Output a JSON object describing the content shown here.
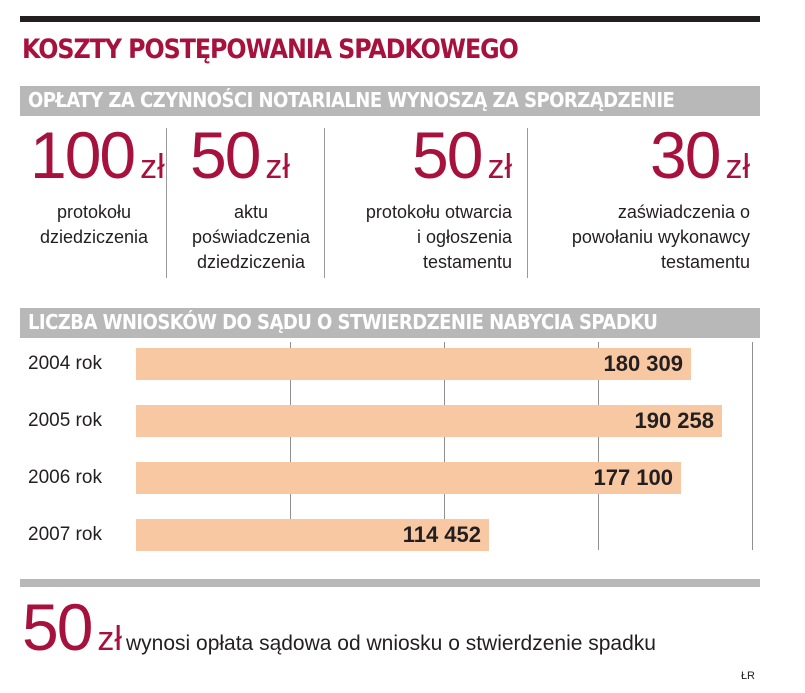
{
  "title": "KOSZTY POSTĘPOWANIA SPADKOWEGO",
  "notary_fees": {
    "heading": "OPŁATY ZA CZYNNOŚCI NOTARIALNE WYNOSZĄ ZA SPORZĄDZENIE",
    "items": [
      {
        "value": "100",
        "currency": "zł",
        "line1": "protokołu",
        "line2": "dziedziczenia",
        "line3": ""
      },
      {
        "value": "50",
        "currency": "zł",
        "line1": "aktu",
        "line2": "poświadczenia",
        "line3": "dziedziczenia"
      },
      {
        "value": "50",
        "currency": "zł",
        "line1": "protokołu otwarcia",
        "line2": "i ogłoszenia",
        "line3": "testamentu"
      },
      {
        "value": "30",
        "currency": "zł",
        "line1": "zaświadczenia o",
        "line2": "powołaniu wykonawcy",
        "line3": "testamentu"
      }
    ]
  },
  "chart_data": {
    "type": "bar",
    "orientation": "horizontal",
    "title": "LICZBA WNIOSKÓW DO SĄDU O STWIERDZENIE NABYCIA SPADKU",
    "categories": [
      "2004 rok",
      "2005 rok",
      "2006 rok",
      "2007 rok"
    ],
    "values": [
      180309,
      190258,
      177100,
      114452
    ],
    "value_labels": [
      "180 309",
      "190 258",
      "177 100",
      "114 452"
    ],
    "xlim": [
      0,
      200000
    ],
    "gridlines": [
      50000,
      100000,
      150000,
      200000
    ],
    "bar_color": "#f8c8a2"
  },
  "court_fee": {
    "value": "50",
    "currency": "zł",
    "text": "wynosi opłata sądowa od wniosku o stwierdzenie spadku"
  },
  "source": "ŁR",
  "colors": {
    "accent": "#a6123d",
    "band": "#b8b8b8",
    "bar": "#f8c8a2"
  }
}
